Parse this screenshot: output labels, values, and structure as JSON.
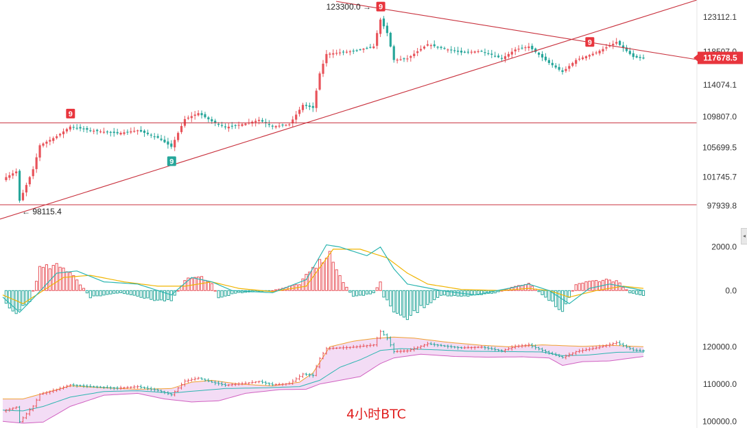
{
  "caption": "4小时BTC",
  "colors": {
    "up": "#e8535a",
    "down": "#26a69a",
    "trend_line": "#c8303c",
    "macd_fast": "#2bb5b0",
    "macd_slow": "#f0b400",
    "boll_upper": "#f0a030",
    "boll_lower": "#d060c0",
    "boll_mid": "#2bb5b0",
    "boll_fill": "#f3dcf5",
    "tag_bg": "#e8353d"
  },
  "icons": {
    "side_handle": "chevron-left-icon"
  },
  "chart_data": [
    {
      "type": "candlestick",
      "panel": "price",
      "y_ticks": [
        123112.1,
        118507.0,
        114074.1,
        109807.0,
        105699.5,
        101745.7,
        97939.8
      ],
      "ylim": [
        96500,
        124500
      ],
      "current_price": 117678.5,
      "annotations": {
        "high_label": "123300.0",
        "low_label": "98115.4"
      },
      "horizontal_levels": [
        109000,
        98050
      ],
      "td_sequential_marks": [
        {
          "label": "9",
          "kind": "sell",
          "bar": 20
        },
        {
          "label": "9",
          "kind": "buy",
          "bar": 50
        },
        {
          "label": "9",
          "kind": "sell",
          "bar": 112
        },
        {
          "label": "9",
          "kind": "sell",
          "bar": 174
        }
      ],
      "path": [
        [
          0,
          101500
        ],
        [
          4,
          102500
        ],
        [
          5,
          98600
        ],
        [
          9,
          102800
        ],
        [
          11,
          106000
        ],
        [
          16,
          107200
        ],
        [
          20,
          108500
        ],
        [
          26,
          108000
        ],
        [
          34,
          107600
        ],
        [
          40,
          108000
        ],
        [
          46,
          107000
        ],
        [
          50,
          105800
        ],
        [
          54,
          109500
        ],
        [
          58,
          110300
        ],
        [
          62,
          109200
        ],
        [
          66,
          108400
        ],
        [
          72,
          108900
        ],
        [
          76,
          109400
        ],
        [
          80,
          108500
        ],
        [
          85,
          108800
        ],
        [
          89,
          111400
        ],
        [
          92,
          111000
        ],
        [
          94,
          115600
        ],
        [
          96,
          118200
        ],
        [
          104,
          118600
        ],
        [
          110,
          119200
        ],
        [
          112,
          122800
        ],
        [
          114,
          121000
        ],
        [
          116,
          117400
        ],
        [
          120,
          117600
        ],
        [
          126,
          119500
        ],
        [
          130,
          119000
        ],
        [
          136,
          118400
        ],
        [
          142,
          118600
        ],
        [
          148,
          117600
        ],
        [
          152,
          118800
        ],
        [
          156,
          119200
        ],
        [
          162,
          117000
        ],
        [
          166,
          115800
        ],
        [
          170,
          117400
        ],
        [
          176,
          118400
        ],
        [
          182,
          119800
        ],
        [
          187,
          117800
        ],
        [
          190,
          117600
        ]
      ]
    },
    {
      "type": "macd",
      "panel": "macd",
      "y_ticks": [
        2000.0,
        0.0
      ],
      "ylim": [
        -1500,
        2400
      ],
      "histogram": [
        [
          0,
          -400
        ],
        [
          4,
          -1000
        ],
        [
          8,
          -500
        ],
        [
          11,
          1000
        ],
        [
          16,
          1100
        ],
        [
          20,
          900
        ],
        [
          26,
          -300
        ],
        [
          35,
          -100
        ],
        [
          45,
          -400
        ],
        [
          50,
          -500
        ],
        [
          54,
          500
        ],
        [
          58,
          700
        ],
        [
          62,
          300
        ],
        [
          64,
          -300
        ],
        [
          70,
          -100
        ],
        [
          80,
          0
        ],
        [
          88,
          300
        ],
        [
          92,
          1000
        ],
        [
          97,
          1700
        ],
        [
          100,
          600
        ],
        [
          104,
          -300
        ],
        [
          110,
          -100
        ],
        [
          112,
          400
        ],
        [
          113,
          -300
        ],
        [
          116,
          -900
        ],
        [
          119,
          -1400
        ],
        [
          124,
          -800
        ],
        [
          130,
          -200
        ],
        [
          136,
          -300
        ],
        [
          146,
          -100
        ],
        [
          152,
          200
        ],
        [
          156,
          300
        ],
        [
          162,
          -400
        ],
        [
          166,
          -900
        ],
        [
          170,
          300
        ],
        [
          178,
          500
        ],
        [
          182,
          450
        ],
        [
          186,
          -100
        ],
        [
          190,
          -200
        ]
      ],
      "fast": [
        [
          0,
          -300
        ],
        [
          5,
          -1000
        ],
        [
          10,
          -200
        ],
        [
          16,
          800
        ],
        [
          22,
          900
        ],
        [
          30,
          400
        ],
        [
          40,
          300
        ],
        [
          50,
          -200
        ],
        [
          56,
          600
        ],
        [
          62,
          400
        ],
        [
          68,
          0
        ],
        [
          80,
          -100
        ],
        [
          90,
          500
        ],
        [
          96,
          2100
        ],
        [
          100,
          2000
        ],
        [
          108,
          1600
        ],
        [
          112,
          2000
        ],
        [
          116,
          1000
        ],
        [
          120,
          300
        ],
        [
          130,
          0
        ],
        [
          140,
          -200
        ],
        [
          150,
          100
        ],
        [
          156,
          300
        ],
        [
          162,
          0
        ],
        [
          168,
          -600
        ],
        [
          174,
          100
        ],
        [
          180,
          300
        ],
        [
          190,
          0
        ]
      ],
      "slow": [
        [
          0,
          -200
        ],
        [
          6,
          -600
        ],
        [
          12,
          0
        ],
        [
          18,
          600
        ],
        [
          26,
          700
        ],
        [
          36,
          400
        ],
        [
          46,
          200
        ],
        [
          54,
          200
        ],
        [
          62,
          400
        ],
        [
          70,
          100
        ],
        [
          80,
          -50
        ],
        [
          90,
          200
        ],
        [
          98,
          1900
        ],
        [
          106,
          1900
        ],
        [
          114,
          1500
        ],
        [
          120,
          800
        ],
        [
          126,
          300
        ],
        [
          136,
          50
        ],
        [
          148,
          0
        ],
        [
          156,
          100
        ],
        [
          162,
          0
        ],
        [
          168,
          -300
        ],
        [
          176,
          0
        ],
        [
          184,
          200
        ],
        [
          190,
          100
        ]
      ]
    },
    {
      "type": "bollinger",
      "panel": "boll",
      "y_ticks": [
        120000.0,
        110000.0,
        100000.0
      ],
      "ylim": [
        99500,
        123000
      ],
      "upper": [
        [
          0,
          106000
        ],
        [
          6,
          106000
        ],
        [
          12,
          107500
        ],
        [
          20,
          109500
        ],
        [
          30,
          109000
        ],
        [
          40,
          108600
        ],
        [
          50,
          108800
        ],
        [
          56,
          110500
        ],
        [
          62,
          111000
        ],
        [
          70,
          110000
        ],
        [
          80,
          109500
        ],
        [
          88,
          110500
        ],
        [
          92,
          113000
        ],
        [
          97,
          120000
        ],
        [
          104,
          121500
        ],
        [
          110,
          122200
        ],
        [
          116,
          122600
        ],
        [
          122,
          122300
        ],
        [
          132,
          121200
        ],
        [
          142,
          120400
        ],
        [
          150,
          120000
        ],
        [
          160,
          120500
        ],
        [
          166,
          120300
        ],
        [
          172,
          120100
        ],
        [
          180,
          120400
        ],
        [
          190,
          120000
        ]
      ],
      "lower": [
        [
          0,
          100000
        ],
        [
          6,
          99500
        ],
        [
          12,
          99800
        ],
        [
          20,
          104000
        ],
        [
          30,
          107000
        ],
        [
          40,
          107500
        ],
        [
          48,
          106000
        ],
        [
          56,
          105200
        ],
        [
          64,
          105500
        ],
        [
          72,
          107500
        ],
        [
          82,
          108500
        ],
        [
          90,
          108600
        ],
        [
          94,
          110000
        ],
        [
          100,
          111000
        ],
        [
          106,
          112000
        ],
        [
          112,
          115500
        ],
        [
          116,
          117000
        ],
        [
          124,
          118000
        ],
        [
          134,
          117400
        ],
        [
          144,
          117200
        ],
        [
          154,
          117300
        ],
        [
          162,
          117000
        ],
        [
          166,
          115000
        ],
        [
          172,
          116000
        ],
        [
          180,
          116200
        ],
        [
          190,
          117400
        ]
      ],
      "middle": [
        [
          0,
          103000
        ],
        [
          6,
          102800
        ],
        [
          12,
          104000
        ],
        [
          20,
          106500
        ],
        [
          30,
          108000
        ],
        [
          40,
          108200
        ],
        [
          50,
          107600
        ],
        [
          58,
          108200
        ],
        [
          66,
          108800
        ],
        [
          78,
          109000
        ],
        [
          88,
          109300
        ],
        [
          94,
          111000
        ],
        [
          100,
          114500
        ],
        [
          106,
          116500
        ],
        [
          112,
          119000
        ],
        [
          118,
          119500
        ],
        [
          128,
          119200
        ],
        [
          138,
          118800
        ],
        [
          150,
          118700
        ],
        [
          160,
          118600
        ],
        [
          166,
          117600
        ],
        [
          174,
          117800
        ],
        [
          182,
          118500
        ],
        [
          190,
          118600
        ]
      ]
    }
  ]
}
